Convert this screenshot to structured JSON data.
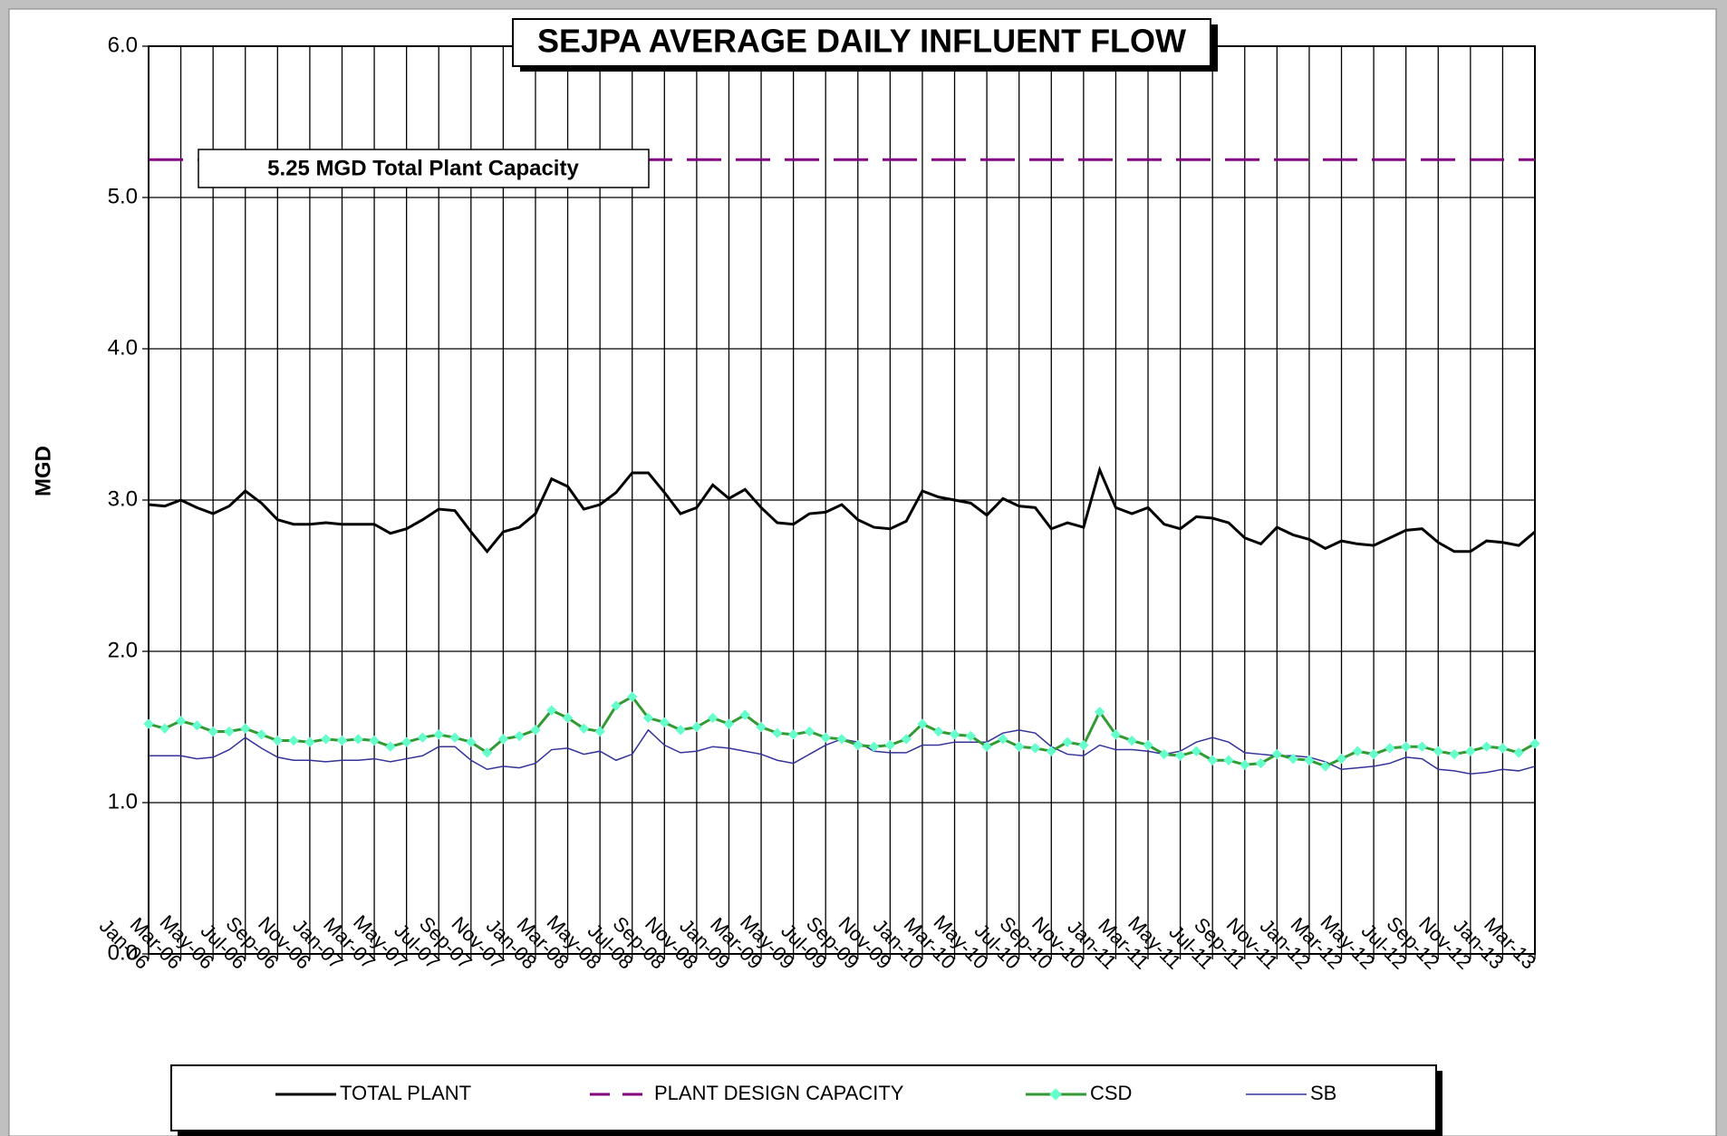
{
  "chart_data": {
    "type": "line",
    "title": "SEJPA AVERAGE DAILY INFLUENT FLOW",
    "y_label": "MGD",
    "annotation": "5.25 MGD Total Plant Capacity",
    "categories": [
      "Jan-06",
      null,
      "Mar-06",
      null,
      "May-06",
      null,
      "Jul-06",
      null,
      "Sep-06",
      null,
      "Nov-06",
      null,
      "Jan-07",
      null,
      "Mar-07",
      null,
      "May-07",
      null,
      "Jul-07",
      null,
      "Sep-07",
      null,
      "Nov-07",
      null,
      "Jan-08",
      null,
      "Mar-08",
      null,
      "May-08",
      null,
      "Jul-08",
      null,
      "Sep-08",
      null,
      "Nov-08",
      null,
      "Jan-09",
      null,
      "Mar-09",
      null,
      "May-09",
      null,
      "Jul-09",
      null,
      "Sep-09",
      null,
      "Nov-09",
      null,
      "Jan-10",
      null,
      "Mar-10",
      null,
      "May-10",
      null,
      "Jul-10",
      null,
      "Sep-10",
      null,
      "Nov-10",
      null,
      "Jan-11",
      null,
      "Mar-11",
      null,
      "May-11",
      null,
      "Jul-11",
      null,
      "Sep-11",
      null,
      "Nov-11",
      null,
      "Jan-12",
      null,
      "Mar-12",
      null,
      "May-12",
      null,
      "Jul-12",
      null,
      "Sep-12",
      null,
      "Nov-12",
      null,
      "Jan-13",
      null,
      "Mar-13"
    ],
    "series": [
      {
        "name": "TOTAL PLANT",
        "color": "#000000",
        "marker": false,
        "values": [
          2.97,
          2.96,
          3.0,
          2.95,
          2.91,
          2.96,
          3.06,
          2.98,
          2.87,
          2.84,
          2.84,
          2.85,
          2.84,
          2.84,
          2.84,
          2.78,
          2.81,
          2.87,
          2.94,
          2.93,
          2.79,
          2.66,
          2.79,
          2.82,
          2.91,
          3.14,
          3.09,
          2.94,
          2.97,
          3.05,
          3.18,
          3.18,
          3.05,
          2.91,
          2.95,
          3.1,
          3.01,
          3.07,
          2.95,
          2.85,
          2.84,
          2.91,
          2.92,
          2.97,
          2.87,
          2.82,
          2.81,
          2.86,
          3.06,
          3.02,
          3.0,
          2.98,
          2.9,
          3.01,
          2.96,
          2.95,
          2.81,
          2.85,
          2.82,
          3.2,
          2.95,
          2.91,
          2.95,
          2.84,
          2.81,
          2.89,
          2.88,
          2.85,
          2.75,
          2.71,
          2.82,
          2.77,
          2.74,
          2.68,
          2.73,
          2.71,
          2.7,
          2.75,
          2.8,
          2.81,
          2.72,
          2.66,
          2.66,
          2.73,
          2.72,
          2.7,
          2.79
        ]
      },
      {
        "name": "CSD",
        "color": "#339933",
        "marker": true,
        "marker_color": "#66ffcc",
        "values": [
          1.52,
          1.49,
          1.54,
          1.51,
          1.47,
          1.47,
          1.49,
          1.45,
          1.41,
          1.41,
          1.4,
          1.42,
          1.41,
          1.42,
          1.41,
          1.37,
          1.4,
          1.43,
          1.45,
          1.43,
          1.4,
          1.33,
          1.42,
          1.44,
          1.48,
          1.61,
          1.56,
          1.49,
          1.47,
          1.64,
          1.7,
          1.56,
          1.53,
          1.48,
          1.5,
          1.56,
          1.52,
          1.58,
          1.5,
          1.46,
          1.45,
          1.47,
          1.43,
          1.42,
          1.38,
          1.37,
          1.38,
          1.42,
          1.52,
          1.47,
          1.45,
          1.44,
          1.37,
          1.42,
          1.37,
          1.36,
          1.34,
          1.4,
          1.38,
          1.6,
          1.45,
          1.41,
          1.38,
          1.32,
          1.31,
          1.34,
          1.28,
          1.28,
          1.25,
          1.26,
          1.32,
          1.29,
          1.28,
          1.24,
          1.29,
          1.34,
          1.32,
          1.36,
          1.37,
          1.37,
          1.34,
          1.32,
          1.34,
          1.37,
          1.36,
          1.33,
          1.39
        ]
      },
      {
        "name": "SB",
        "color": "#333399",
        "marker": false,
        "values": [
          1.31,
          1.31,
          1.31,
          1.29,
          1.3,
          1.35,
          1.43,
          1.36,
          1.3,
          1.28,
          1.28,
          1.27,
          1.28,
          1.28,
          1.29,
          1.27,
          1.29,
          1.31,
          1.37,
          1.37,
          1.28,
          1.22,
          1.24,
          1.23,
          1.26,
          1.35,
          1.36,
          1.32,
          1.34,
          1.28,
          1.32,
          1.48,
          1.38,
          1.33,
          1.34,
          1.37,
          1.36,
          1.34,
          1.32,
          1.28,
          1.26,
          1.32,
          1.38,
          1.42,
          1.4,
          1.34,
          1.33,
          1.33,
          1.38,
          1.38,
          1.4,
          1.4,
          1.4,
          1.46,
          1.48,
          1.46,
          1.37,
          1.32,
          1.31,
          1.38,
          1.35,
          1.35,
          1.34,
          1.32,
          1.34,
          1.4,
          1.43,
          1.4,
          1.33,
          1.32,
          1.31,
          1.31,
          1.3,
          1.27,
          1.22,
          1.23,
          1.24,
          1.26,
          1.3,
          1.29,
          1.22,
          1.21,
          1.19,
          1.2,
          1.22,
          1.21,
          1.24
        ]
      }
    ],
    "reference_line": {
      "name": "PLANT DESIGN CAPACITY",
      "color": "#800080",
      "value": 5.25
    },
    "legend_order": [
      "series.0",
      "reference_line",
      "series.1",
      "series.2"
    ],
    "ylim": [
      0,
      6
    ],
    "yticks": [
      {
        "value": 0,
        "label": "0.0"
      },
      {
        "value": 1,
        "label": "1.0"
      },
      {
        "value": 2,
        "label": "2.0"
      },
      {
        "value": 3,
        "label": "3.0"
      },
      {
        "value": 4,
        "label": "4.0"
      },
      {
        "value": 5,
        "label": "5.0"
      },
      {
        "value": 6,
        "label": "6.0"
      }
    ],
    "grid": true
  }
}
